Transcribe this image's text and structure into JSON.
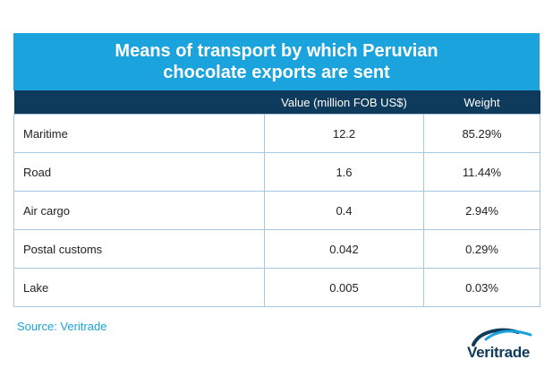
{
  "chart_data": {
    "type": "table",
    "title_line1": "Means of transport by which Peruvian",
    "title_line2": "chocolate exports are sent",
    "columns": [
      "",
      "Value (million FOB US$)",
      "Weight"
    ],
    "rows": [
      {
        "label": "Maritime",
        "value": "12.2",
        "weight": "85.29%"
      },
      {
        "label": "Road",
        "value": "1.6",
        "weight": "11.44%"
      },
      {
        "label": "Air cargo",
        "value": "0.4",
        "weight": "2.94%"
      },
      {
        "label": "Postal customs",
        "value": "0.042",
        "weight": "0.29%"
      },
      {
        "label": "Lake",
        "value": "0.005",
        "weight": "0.03%"
      }
    ],
    "source": "Source: Veritrade"
  },
  "logo": {
    "text": "Veritrade",
    "colors": {
      "primary": "#0e3a5c",
      "accent": "#1aa3dc"
    }
  },
  "colors": {
    "title_bg": "#1aa3dc",
    "header_bg": "#0e3a5c",
    "border": "#a9c7dc"
  }
}
